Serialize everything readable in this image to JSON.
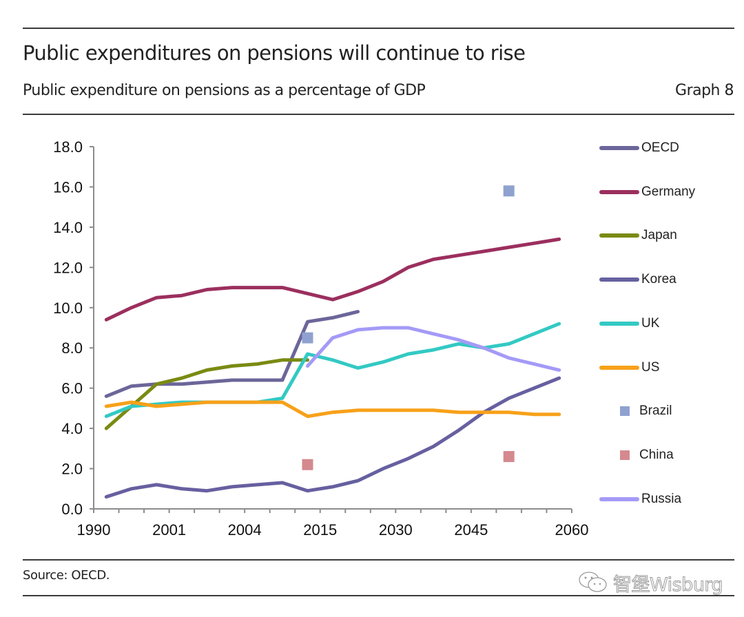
{
  "header": {
    "title": "Public expenditures on pensions will continue to rise",
    "subtitle": "Public expenditure on pensions as a percentage of GDP",
    "graph_number": "Graph 8"
  },
  "footer": {
    "source": "Source: OECD.",
    "watermark": "智堡Wisburg"
  },
  "chart_data": {
    "type": "line",
    "title": "Public expenditures on pensions will continue to rise",
    "subtitle": "Public expenditure on pensions as a percentage of GDP",
    "xlabel": "",
    "ylabel": "",
    "ylim": [
      0,
      18
    ],
    "yticks": [
      "0.0",
      "2.0",
      "4.0",
      "6.0",
      "8.0",
      "10.0",
      "12.0",
      "14.0",
      "16.0",
      "18.0"
    ],
    "xtick_labels": [
      "1990",
      "2001",
      "2004",
      "2015",
      "2030",
      "2045",
      "2060"
    ],
    "category_count": 19,
    "grid": false,
    "legend_position": "right",
    "series": [
      {
        "name": "OECD",
        "kind": "line",
        "color": "#6b6699",
        "start": 0,
        "values": [
          5.6,
          6.1,
          6.2,
          6.2,
          6.3,
          6.4,
          6.4,
          6.4,
          9.3,
          9.5,
          9.8
        ]
      },
      {
        "name": "Germany",
        "kind": "line",
        "color": "#9b2f5e",
        "start": 0,
        "values": [
          9.4,
          10.0,
          10.5,
          10.6,
          10.9,
          11.0,
          11.0,
          11.0,
          10.7,
          10.4,
          10.8,
          11.3,
          12.0,
          12.4,
          12.6,
          12.8,
          13.0,
          13.2,
          13.4
        ]
      },
      {
        "name": "Japan",
        "kind": "line",
        "color": "#7a8a12",
        "start": 0,
        "values": [
          4.0,
          5.1,
          6.2,
          6.5,
          6.9,
          7.1,
          7.2,
          7.4,
          7.4
        ]
      },
      {
        "name": "Korea",
        "kind": "line",
        "color": "#6660a0",
        "start": 0,
        "values": [
          0.6,
          1.0,
          1.2,
          1.0,
          0.9,
          1.1,
          1.2,
          1.3,
          0.9,
          1.1,
          1.4,
          2.0,
          2.5,
          3.1,
          3.9,
          4.8,
          5.5,
          6.0,
          6.5
        ]
      },
      {
        "name": "UK",
        "kind": "line",
        "color": "#33c9c4",
        "start": 0,
        "values": [
          4.6,
          5.1,
          5.2,
          5.3,
          5.3,
          5.3,
          5.3,
          5.5,
          7.7,
          7.4,
          7.0,
          7.3,
          7.7,
          7.9,
          8.2,
          8.0,
          8.2,
          8.7,
          9.2
        ]
      },
      {
        "name": "US",
        "kind": "line",
        "color": "#f7a11a",
        "start": 0,
        "values": [
          5.1,
          5.3,
          5.1,
          5.2,
          5.3,
          5.3,
          5.3,
          5.3,
          4.6,
          4.8,
          4.9,
          4.9,
          4.9,
          4.9,
          4.8,
          4.8,
          4.8,
          4.7,
          4.7
        ]
      },
      {
        "name": "Brazil",
        "kind": "marker",
        "color": "#8fa2cf",
        "points": [
          {
            "index": 8,
            "value": 8.5
          },
          {
            "index": 16,
            "value": 15.8
          }
        ]
      },
      {
        "name": "China",
        "kind": "marker",
        "color": "#d4898e",
        "points": [
          {
            "index": 8,
            "value": 2.2
          },
          {
            "index": 16,
            "value": 2.6
          }
        ]
      },
      {
        "name": "Russia",
        "kind": "line",
        "color": "#a49af7",
        "start": 8,
        "values": [
          7.1,
          8.5,
          8.9,
          9.0,
          9.0,
          8.7,
          8.4,
          8.0,
          7.5,
          7.2,
          6.9
        ]
      }
    ]
  }
}
